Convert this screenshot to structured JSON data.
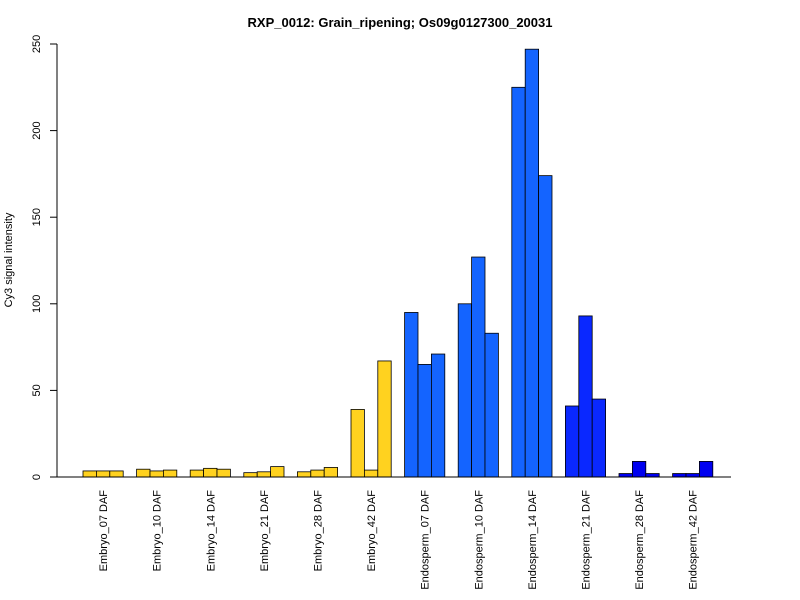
{
  "chart_data": {
    "type": "bar",
    "title": "RXP_0012: Grain_ripening; Os09g0127300_20031",
    "ylabel": "Cy3 signal intensity",
    "xlabel": "",
    "ylim": [
      0,
      250
    ],
    "yticks": [
      0,
      50,
      100,
      150,
      200,
      250
    ],
    "grid": false,
    "categories": [
      "Embryo_07 DAF",
      "Embryo_10 DAF",
      "Embryo_14 DAF",
      "Embryo_21 DAF",
      "Embryo_28 DAF",
      "Embryo_42 DAF",
      "Endosperm_07 DAF",
      "Endosperm_10 DAF",
      "Endosperm_14 DAF",
      "Endosperm_21 DAF",
      "Endosperm_28 DAF",
      "Endosperm_42 DAF"
    ],
    "colors": [
      "#FFD21F",
      "#FFD21F",
      "#FFD21F",
      "#FFD21F",
      "#FFD21F",
      "#FFD21F",
      "#1464FF",
      "#1464FF",
      "#1464FF",
      "#0A28FF",
      "#0000F0",
      "#0000F0"
    ],
    "replicates": [
      [
        3.5,
        3.5,
        3.5
      ],
      [
        4.5,
        3.5,
        4.0
      ],
      [
        4.0,
        5.0,
        4.5
      ],
      [
        2.5,
        3.0,
        6.0
      ],
      [
        3.0,
        4.0,
        5.5
      ],
      [
        39,
        4.0,
        67
      ],
      [
        95,
        65,
        71
      ],
      [
        100,
        127,
        83
      ],
      [
        225,
        247,
        174
      ],
      [
        41,
        93,
        45
      ],
      [
        2.0,
        9.0,
        2.0
      ],
      [
        2.0,
        2.0,
        9.0
      ]
    ]
  }
}
